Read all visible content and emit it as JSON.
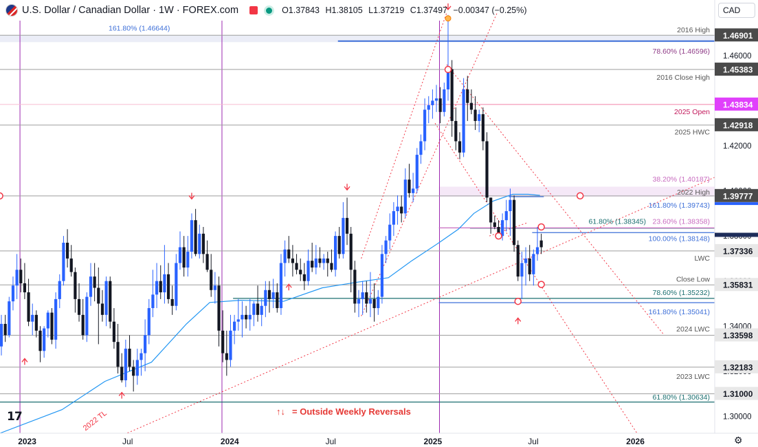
{
  "header": {
    "title": "U.S. Dollar / Canadian Dollar · 1W · FOREX.com",
    "open_label": "O",
    "open": "1.37843",
    "high_label": "H",
    "high": "1.38105",
    "low_label": "L",
    "low": "1.37219",
    "close_label": "C",
    "close": "1.37497",
    "change": "−0.00347 (−0.25%)"
  },
  "currency_select": "CAD",
  "logo_text": "17",
  "chart_data": {
    "type": "candlestick",
    "title": "U.S. Dollar / Canadian Dollar · 1W · FOREX.com",
    "ylim": [
      1.2925,
      1.4755
    ],
    "yticks": [
      "1.30000",
      "1.32000",
      "1.34000",
      "1.36000",
      "1.38000",
      "1.40000",
      "1.42000",
      "1.44000",
      "1.46000"
    ],
    "xlim": [
      "2022-11-13",
      "2026-05-24"
    ],
    "xticks": [
      {
        "label": "2023",
        "date": "2023-01-01"
      },
      {
        "label": "Jul",
        "date": "2023-07-01"
      },
      {
        "label": "2024",
        "date": "2024-01-01"
      },
      {
        "label": "Jul",
        "date": "2024-07-01"
      },
      {
        "label": "2025",
        "date": "2025-01-01"
      },
      {
        "label": "Jul",
        "date": "2025-07-01"
      },
      {
        "label": "2026",
        "date": "2026-01-01"
      }
    ],
    "colors": {
      "up": "#2962ff",
      "down": "#131722",
      "bear_channel": "#f23645",
      "ma": "#2196f3",
      "vline": "#9c27b0",
      "level": "#787b86",
      "fib_blue": "#3d6fd8",
      "fib_pink": "#c86bbf",
      "open_magenta": "#e040fb",
      "teal": "#1b6f70",
      "current": "#131722"
    },
    "price_labels": [
      {
        "value": 1.46901,
        "text": "1.46901",
        "bg": "#4a4a4a",
        "fg": "#ffffff"
      },
      {
        "value": 1.45383,
        "text": "1.45383",
        "bg": "#4a4a4a",
        "fg": "#ffffff"
      },
      {
        "value": 1.43834,
        "text": "1.43834",
        "bg": "#e040fb",
        "fg": "#ffffff"
      },
      {
        "value": 1.42918,
        "text": "1.42918",
        "bg": "#4a4a4a",
        "fg": "#ffffff"
      },
      {
        "value": 1.39777,
        "text": "1.39777",
        "bg": "#4a4a4a",
        "fg": "#ffffff"
      },
      {
        "value": 1.37336,
        "text": "1.37336",
        "bg": "#e8e8e8",
        "fg": "#131722"
      },
      {
        "value": 1.35831,
        "text": "1.35831",
        "bg": "#e8e8e8",
        "fg": "#131722"
      },
      {
        "value": 1.33598,
        "text": "1.33598",
        "bg": "#e8e8e8",
        "fg": "#131722"
      },
      {
        "value": 1.32183,
        "text": "1.32183",
        "bg": "#e8e8e8",
        "fg": "#131722"
      },
      {
        "value": 1.31,
        "text": "1.31000",
        "bg": "#e8e8e8",
        "fg": "#131722"
      }
    ],
    "level_lines": [
      {
        "value": 1.46901,
        "text": "2016 High",
        "label_value": 1.4715
      },
      {
        "value": 1.45383,
        "text": "2016 Close High",
        "label_value": 1.4505
      },
      {
        "value": 1.43834,
        "text": "2025 Open",
        "label_value": 1.4352
      },
      {
        "value": 1.42918,
        "text": "2025 HWC",
        "label_value": 1.4262
      },
      {
        "value": 1.39777,
        "text": "2022 High",
        "label_value": 1.3995
      },
      {
        "value": 1.37336,
        "text": "LWC",
        "label_value": 1.3703
      },
      {
        "value": 1.35831,
        "text": "Close Low",
        "label_value": 1.361
      },
      {
        "value": 1.33598,
        "text": "2024 LWC",
        "label_value": 1.3388
      },
      {
        "value": 1.32183,
        "text": "2023 LWC",
        "label_value": 1.3178
      }
    ],
    "fib_labels": [
      {
        "text": "161.80% (1.46644)",
        "value": 1.46644,
        "label_value": 1.4723
      },
      {
        "text": "78.60% (1.46596)",
        "value": 1.46596,
        "label_value": 1.4621
      },
      {
        "text": "38.20% (1.40187)",
        "value": 1.40187,
        "label_value": 1.4054
      },
      {
        "text": "161.80% (1.39743)",
        "value": 1.39743,
        "label_value": 1.3938
      },
      {
        "text": "61.80% (1.38345)",
        "value": 1.38345,
        "label_value": 1.3866
      },
      {
        "text": "23.60% (1.38358)",
        "value": 1.38358,
        "label_value": 1.3866
      },
      {
        "text": "100.00% (1.38148)",
        "value": 1.38148,
        "label_value": 1.379
      },
      {
        "text": "78.60% (1.35232)",
        "value": 1.35232,
        "label_value": 1.355
      },
      {
        "text": "161.80% (1.35041)",
        "value": 1.35041,
        "label_value": 1.3465
      },
      {
        "text": "61.80% (1.30634)",
        "value": 1.30634,
        "label_value": 1.3087
      }
    ],
    "annotations": [
      "2022 TL",
      "= Outside Weekly Reversals"
    ],
    "vlines": [
      "2022-12-19",
      "2023-12-18",
      "2025-01-13"
    ],
    "ma_points": [
      [
        "2022-11-13",
        1.2925
      ],
      [
        "2023-03-05",
        1.303
      ],
      [
        "2023-05-21",
        1.3155
      ],
      [
        "2023-08-13",
        1.324
      ],
      [
        "2023-10-15",
        1.341
      ],
      [
        "2023-11-26",
        1.3505
      ],
      [
        "2024-01-21",
        1.3515
      ],
      [
        "2024-04-07",
        1.351
      ],
      [
        "2024-06-16",
        1.357
      ],
      [
        "2024-08-18",
        1.3595
      ],
      [
        "2024-10-13",
        1.3615
      ],
      [
        "2024-11-24",
        1.369
      ],
      [
        "2025-01-12",
        1.377
      ],
      [
        "2025-02-16",
        1.383
      ],
      [
        "2025-03-16",
        1.39
      ],
      [
        "2025-04-20",
        1.3955
      ],
      [
        "2025-05-25",
        1.3985
      ],
      [
        "2025-06-22",
        1.3985
      ],
      [
        "2025-07-13",
        1.398
      ]
    ],
    "candles": [
      [
        "2022-11-13",
        1.331,
        1.345,
        1.327,
        1.341
      ],
      [
        "2022-11-20",
        1.341,
        1.345,
        1.333,
        1.336
      ],
      [
        "2022-11-27",
        1.336,
        1.353,
        1.335,
        1.351
      ],
      [
        "2022-12-04",
        1.351,
        1.362,
        1.347,
        1.358
      ],
      [
        "2022-12-11",
        1.358,
        1.372,
        1.352,
        1.365
      ],
      [
        "2022-12-18",
        1.365,
        1.37,
        1.355,
        1.359
      ],
      [
        "2022-12-25",
        1.359,
        1.368,
        1.352,
        1.355
      ],
      [
        "2023-01-01",
        1.355,
        1.361,
        1.34,
        1.342
      ],
      [
        "2023-01-08",
        1.342,
        1.35,
        1.336,
        1.345
      ],
      [
        "2023-01-15",
        1.345,
        1.347,
        1.335,
        1.338
      ],
      [
        "2023-01-22",
        1.338,
        1.34,
        1.324,
        1.329
      ],
      [
        "2023-01-29",
        1.329,
        1.34,
        1.326,
        1.339
      ],
      [
        "2023-02-05",
        1.339,
        1.347,
        1.335,
        1.346
      ],
      [
        "2023-02-12",
        1.346,
        1.348,
        1.332,
        1.334
      ],
      [
        "2023-02-19",
        1.334,
        1.355,
        1.33,
        1.352
      ],
      [
        "2023-02-26",
        1.352,
        1.363,
        1.348,
        1.36
      ],
      [
        "2023-03-05",
        1.36,
        1.38,
        1.358,
        1.377
      ],
      [
        "2023-03-12",
        1.377,
        1.383,
        1.366,
        1.37
      ],
      [
        "2023-03-19",
        1.37,
        1.376,
        1.362,
        1.364
      ],
      [
        "2023-03-26",
        1.364,
        1.366,
        1.346,
        1.352
      ],
      [
        "2023-04-02",
        1.352,
        1.359,
        1.342,
        1.345
      ],
      [
        "2023-04-09",
        1.345,
        1.352,
        1.334,
        1.336
      ],
      [
        "2023-04-16",
        1.336,
        1.355,
        1.333,
        1.353
      ],
      [
        "2023-04-23",
        1.353,
        1.368,
        1.349,
        1.362
      ],
      [
        "2023-04-30",
        1.362,
        1.368,
        1.351,
        1.357
      ],
      [
        "2023-05-07",
        1.357,
        1.366,
        1.332,
        1.35
      ],
      [
        "2023-05-14",
        1.35,
        1.356,
        1.342,
        1.345
      ],
      [
        "2023-05-21",
        1.345,
        1.362,
        1.34,
        1.36
      ],
      [
        "2023-05-28",
        1.36,
        1.362,
        1.339,
        1.342
      ],
      [
        "2023-06-04",
        1.342,
        1.348,
        1.33,
        1.333
      ],
      [
        "2023-06-11",
        1.333,
        1.341,
        1.319,
        1.322
      ],
      [
        "2023-06-18",
        1.322,
        1.328,
        1.315,
        1.316
      ],
      [
        "2023-06-25",
        1.316,
        1.334,
        1.313,
        1.33
      ],
      [
        "2023-07-02",
        1.33,
        1.336,
        1.32,
        1.322
      ],
      [
        "2023-07-09",
        1.322,
        1.325,
        1.311,
        1.318
      ],
      [
        "2023-07-16",
        1.318,
        1.33,
        1.314,
        1.325
      ],
      [
        "2023-07-23",
        1.325,
        1.33,
        1.318,
        1.328
      ],
      [
        "2023-07-30",
        1.328,
        1.343,
        1.32,
        1.336
      ],
      [
        "2023-08-06",
        1.336,
        1.352,
        1.332,
        1.348
      ],
      [
        "2023-08-13",
        1.348,
        1.365,
        1.344,
        1.354
      ],
      [
        "2023-08-20",
        1.354,
        1.368,
        1.348,
        1.36
      ],
      [
        "2023-08-27",
        1.36,
        1.367,
        1.352,
        1.355
      ],
      [
        "2023-09-03",
        1.355,
        1.376,
        1.35,
        1.363
      ],
      [
        "2023-09-10",
        1.363,
        1.368,
        1.35,
        1.352
      ],
      [
        "2023-09-17",
        1.352,
        1.358,
        1.345,
        1.349
      ],
      [
        "2023-09-24",
        1.349,
        1.372,
        1.347,
        1.368
      ],
      [
        "2023-10-01",
        1.368,
        1.382,
        1.365,
        1.375
      ],
      [
        "2023-10-08",
        1.375,
        1.38,
        1.362,
        1.366
      ],
      [
        "2023-10-15",
        1.366,
        1.38,
        1.362,
        1.373
      ],
      [
        "2023-10-22",
        1.373,
        1.39,
        1.37,
        1.387
      ],
      [
        "2023-10-29",
        1.387,
        1.392,
        1.371,
        1.372
      ],
      [
        "2023-11-05",
        1.372,
        1.385,
        1.37,
        1.381
      ],
      [
        "2023-11-12",
        1.381,
        1.384,
        1.368,
        1.372
      ],
      [
        "2023-11-19",
        1.372,
        1.378,
        1.364,
        1.365
      ],
      [
        "2023-11-26",
        1.365,
        1.372,
        1.353,
        1.356
      ],
      [
        "2023-12-03",
        1.356,
        1.364,
        1.35,
        1.358
      ],
      [
        "2023-12-10",
        1.358,
        1.362,
        1.331,
        1.338
      ],
      [
        "2023-12-17",
        1.338,
        1.347,
        1.324,
        1.328
      ],
      [
        "2023-12-24",
        1.328,
        1.338,
        1.318,
        1.325
      ],
      [
        "2023-12-31",
        1.325,
        1.345,
        1.322,
        1.338
      ],
      [
        "2024-01-07",
        1.338,
        1.345,
        1.332,
        1.342
      ],
      [
        "2024-01-14",
        1.342,
        1.352,
        1.338,
        1.343
      ],
      [
        "2024-01-21",
        1.343,
        1.351,
        1.335,
        1.345
      ],
      [
        "2024-01-28",
        1.345,
        1.349,
        1.339,
        1.343
      ],
      [
        "2024-02-04",
        1.343,
        1.352,
        1.338,
        1.345
      ],
      [
        "2024-02-11",
        1.345,
        1.351,
        1.34,
        1.35
      ],
      [
        "2024-02-18",
        1.35,
        1.358,
        1.342,
        1.345
      ],
      [
        "2024-02-25",
        1.345,
        1.352,
        1.34,
        1.349
      ],
      [
        "2024-03-03",
        1.349,
        1.36,
        1.344,
        1.356
      ],
      [
        "2024-03-10",
        1.356,
        1.36,
        1.346,
        1.352
      ],
      [
        "2024-03-17",
        1.352,
        1.361,
        1.348,
        1.355
      ],
      [
        "2024-03-24",
        1.355,
        1.359,
        1.346,
        1.348
      ],
      [
        "2024-03-31",
        1.348,
        1.372,
        1.345,
        1.368
      ],
      [
        "2024-04-07",
        1.368,
        1.378,
        1.362,
        1.374
      ],
      [
        "2024-04-14",
        1.374,
        1.38,
        1.368,
        1.37
      ],
      [
        "2024-04-21",
        1.37,
        1.376,
        1.362,
        1.368
      ],
      [
        "2024-04-28",
        1.368,
        1.372,
        1.363,
        1.365
      ],
      [
        "2024-05-05",
        1.365,
        1.37,
        1.36,
        1.363
      ],
      [
        "2024-05-12",
        1.363,
        1.368,
        1.356,
        1.36
      ],
      [
        "2024-05-19",
        1.36,
        1.374,
        1.358,
        1.369
      ],
      [
        "2024-05-26",
        1.369,
        1.377,
        1.364,
        1.366
      ],
      [
        "2024-06-02",
        1.366,
        1.376,
        1.363,
        1.37
      ],
      [
        "2024-06-09",
        1.37,
        1.375,
        1.366,
        1.368
      ],
      [
        "2024-06-16",
        1.368,
        1.372,
        1.365,
        1.37
      ],
      [
        "2024-06-23",
        1.37,
        1.373,
        1.362,
        1.368
      ],
      [
        "2024-06-30",
        1.368,
        1.374,
        1.364,
        1.365
      ],
      [
        "2024-07-07",
        1.365,
        1.382,
        1.362,
        1.38
      ],
      [
        "2024-07-14",
        1.38,
        1.384,
        1.37,
        1.372
      ],
      [
        "2024-07-21",
        1.372,
        1.395,
        1.37,
        1.388
      ],
      [
        "2024-07-28",
        1.388,
        1.397,
        1.376,
        1.381
      ],
      [
        "2024-08-04",
        1.381,
        1.384,
        1.355,
        1.365
      ],
      [
        "2024-08-11",
        1.365,
        1.369,
        1.346,
        1.35
      ],
      [
        "2024-08-18",
        1.35,
        1.356,
        1.344,
        1.352
      ],
      [
        "2024-08-25",
        1.352,
        1.36,
        1.345,
        1.355
      ],
      [
        "2024-09-01",
        1.355,
        1.36,
        1.346,
        1.35
      ],
      [
        "2024-09-08",
        1.35,
        1.364,
        1.344,
        1.352
      ],
      [
        "2024-09-15",
        1.352,
        1.359,
        1.342,
        1.348
      ],
      [
        "2024-09-22",
        1.348,
        1.356,
        1.345,
        1.353
      ],
      [
        "2024-09-29",
        1.353,
        1.376,
        1.35,
        1.372
      ],
      [
        "2024-10-06",
        1.372,
        1.38,
        1.368,
        1.378
      ],
      [
        "2024-10-13",
        1.378,
        1.39,
        1.374,
        1.385
      ],
      [
        "2024-10-20",
        1.385,
        1.395,
        1.38,
        1.391
      ],
      [
        "2024-10-27",
        1.391,
        1.398,
        1.385,
        1.393
      ],
      [
        "2024-11-03",
        1.393,
        1.398,
        1.386,
        1.39
      ],
      [
        "2024-11-10",
        1.39,
        1.41,
        1.388,
        1.405
      ],
      [
        "2024-11-17",
        1.405,
        1.412,
        1.397,
        1.399
      ],
      [
        "2024-11-24",
        1.399,
        1.408,
        1.395,
        1.401
      ],
      [
        "2024-12-01",
        1.401,
        1.419,
        1.399,
        1.416
      ],
      [
        "2024-12-08",
        1.416,
        1.425,
        1.412,
        1.422
      ],
      [
        "2024-12-15",
        1.422,
        1.441,
        1.418,
        1.436
      ],
      [
        "2024-12-22",
        1.436,
        1.442,
        1.43,
        1.438
      ],
      [
        "2024-12-29",
        1.438,
        1.445,
        1.432,
        1.44
      ],
      [
        "2025-01-05",
        1.44,
        1.447,
        1.435,
        1.441
      ],
      [
        "2025-01-12",
        1.441,
        1.446,
        1.43,
        1.435
      ],
      [
        "2025-01-19",
        1.435,
        1.448,
        1.433,
        1.445
      ],
      [
        "2025-01-26",
        1.445,
        1.478,
        1.44,
        1.454
      ],
      [
        "2025-02-02",
        1.454,
        1.458,
        1.424,
        1.431
      ],
      [
        "2025-02-09",
        1.431,
        1.437,
        1.418,
        1.422
      ],
      [
        "2025-02-16",
        1.422,
        1.426,
        1.414,
        1.417
      ],
      [
        "2025-02-23",
        1.417,
        1.45,
        1.415,
        1.445
      ],
      [
        "2025-03-02",
        1.445,
        1.451,
        1.431,
        1.439
      ],
      [
        "2025-03-09",
        1.439,
        1.445,
        1.434,
        1.436
      ],
      [
        "2025-03-16",
        1.436,
        1.442,
        1.427,
        1.431
      ],
      [
        "2025-03-23",
        1.431,
        1.436,
        1.426,
        1.434
      ],
      [
        "2025-03-30",
        1.434,
        1.437,
        1.418,
        1.422
      ],
      [
        "2025-04-06",
        1.422,
        1.426,
        1.395,
        1.397
      ],
      [
        "2025-04-13",
        1.397,
        1.397,
        1.381,
        1.386
      ],
      [
        "2025-04-20",
        1.386,
        1.389,
        1.383,
        1.384
      ],
      [
        "2025-04-27",
        1.384,
        1.387,
        1.379,
        1.38
      ],
      [
        "2025-05-04",
        1.38,
        1.39,
        1.378,
        1.387
      ],
      [
        "2025-05-11",
        1.387,
        1.396,
        1.382,
        1.391
      ],
      [
        "2025-05-18",
        1.391,
        1.401,
        1.38,
        1.396
      ],
      [
        "2025-05-25",
        1.396,
        1.398,
        1.373,
        1.376
      ],
      [
        "2025-06-01",
        1.376,
        1.378,
        1.36,
        1.362
      ],
      [
        "2025-06-08",
        1.362,
        1.373,
        1.352,
        1.368
      ],
      [
        "2025-06-15",
        1.368,
        1.375,
        1.358,
        1.37
      ],
      [
        "2025-06-22",
        1.37,
        1.376,
        1.36,
        1.363
      ],
      [
        "2025-06-29",
        1.363,
        1.374,
        1.358,
        1.372
      ],
      [
        "2025-07-06",
        1.372,
        1.384,
        1.369,
        1.375
      ],
      [
        "2025-07-13",
        1.378,
        1.381,
        1.372,
        1.375
      ]
    ]
  }
}
